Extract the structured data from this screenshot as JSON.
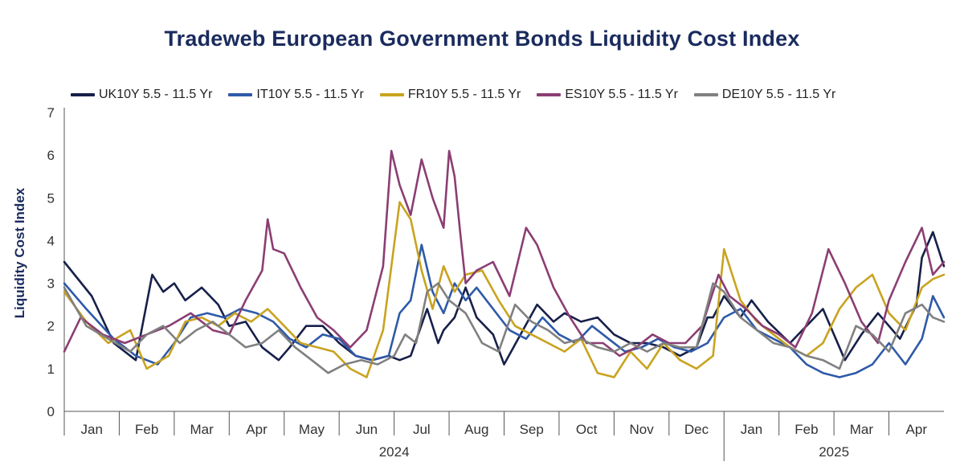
{
  "chart_data": {
    "type": "line",
    "title": "Tradeweb European Government Bonds Liquidity Cost Index",
    "ylabel": "Liquidity Cost Index",
    "xlabel": "",
    "ylim": [
      0,
      7
    ],
    "yticks": [
      0,
      1,
      2,
      3,
      4,
      5,
      6,
      7
    ],
    "x_unit": "month index (0 = start of Jan 2024)",
    "xlim": [
      0,
      16
    ],
    "month_labels": [
      "Jan",
      "Feb",
      "Mar",
      "Apr",
      "May",
      "Jun",
      "Jul",
      "Aug",
      "Sep",
      "Oct",
      "Nov",
      "Dec",
      "Jan",
      "Feb",
      "Mar",
      "Apr"
    ],
    "year_labels": [
      {
        "label": "2024",
        "center": 6.0
      },
      {
        "label": "2025",
        "center": 14.0
      }
    ],
    "grid": false,
    "legend_position": "top",
    "series": [
      {
        "name": "UK10Y 5.5 - 11.5 Yr",
        "color": "#17204a",
        "x": [
          0,
          0.5,
          0.9,
          1.3,
          1.6,
          1.8,
          2.0,
          2.2,
          2.5,
          2.8,
          3.0,
          3.3,
          3.6,
          3.9,
          4.1,
          4.4,
          4.7,
          5.0,
          5.3,
          5.6,
          5.9,
          6.1,
          6.3,
          6.6,
          6.8,
          6.9,
          7.1,
          7.3,
          7.5,
          7.8,
          8.0,
          8.3,
          8.6,
          8.9,
          9.1,
          9.4,
          9.7,
          10.0,
          10.3,
          10.6,
          10.9,
          11.2,
          11.5,
          11.7,
          11.8,
          12.0,
          12.3,
          12.5,
          12.8,
          13.2,
          13.5,
          13.8,
          14.2,
          14.5,
          14.8,
          15.0,
          15.2,
          15.5,
          15.6,
          15.8,
          16.0
        ],
        "values": [
          3.5,
          2.7,
          1.6,
          1.2,
          3.2,
          2.8,
          3.0,
          2.6,
          2.9,
          2.5,
          2.0,
          2.1,
          1.5,
          1.2,
          1.5,
          2.0,
          2.0,
          1.6,
          1.3,
          1.2,
          1.3,
          1.2,
          1.3,
          2.4,
          1.6,
          1.9,
          2.2,
          2.9,
          2.2,
          1.8,
          1.1,
          1.8,
          2.5,
          2.1,
          2.3,
          2.1,
          2.2,
          1.8,
          1.6,
          1.6,
          1.5,
          1.3,
          1.5,
          2.2,
          2.2,
          2.7,
          2.2,
          2.6,
          2.1,
          1.6,
          2.0,
          2.4,
          1.2,
          1.8,
          2.3,
          2.0,
          1.7,
          2.5,
          3.6,
          4.2,
          3.4
        ]
      },
      {
        "name": "IT10Y 5.5 - 11.5 Yr",
        "color": "#2e5aa8",
        "x": [
          0,
          0.4,
          0.9,
          1.3,
          1.7,
          2.0,
          2.3,
          2.6,
          2.9,
          3.2,
          3.5,
          3.8,
          4.1,
          4.4,
          4.7,
          5.0,
          5.3,
          5.6,
          5.9,
          6.1,
          6.3,
          6.5,
          6.7,
          6.9,
          7.1,
          7.3,
          7.5,
          7.8,
          8.1,
          8.4,
          8.7,
          9.0,
          9.3,
          9.6,
          9.9,
          10.2,
          10.5,
          10.8,
          11.1,
          11.4,
          11.7,
          12.0,
          12.3,
          12.6,
          12.9,
          13.2,
          13.5,
          13.8,
          14.1,
          14.4,
          14.7,
          15.0,
          15.3,
          15.6,
          15.8,
          16.0
        ],
        "values": [
          3.0,
          2.4,
          1.7,
          1.3,
          1.1,
          1.6,
          2.2,
          2.3,
          2.2,
          2.4,
          2.3,
          2.1,
          1.7,
          1.5,
          1.8,
          1.7,
          1.3,
          1.2,
          1.3,
          2.3,
          2.6,
          3.9,
          2.8,
          2.3,
          3.0,
          2.6,
          2.9,
          2.4,
          1.9,
          1.7,
          2.2,
          1.8,
          1.6,
          2.0,
          1.7,
          1.4,
          1.5,
          1.7,
          1.5,
          1.4,
          1.6,
          2.2,
          2.4,
          1.9,
          1.7,
          1.5,
          1.1,
          0.9,
          0.8,
          0.9,
          1.1,
          1.6,
          1.1,
          1.7,
          2.7,
          2.2
        ]
      },
      {
        "name": "FR10Y 5.5 - 11.5 Yr",
        "color": "#c9a320",
        "x": [
          0,
          0.4,
          0.8,
          1.2,
          1.5,
          1.9,
          2.2,
          2.5,
          2.8,
          3.1,
          3.4,
          3.7,
          4.0,
          4.3,
          4.6,
          4.9,
          5.2,
          5.5,
          5.8,
          5.95,
          6.1,
          6.3,
          6.5,
          6.7,
          6.9,
          7.1,
          7.3,
          7.6,
          7.9,
          8.2,
          8.5,
          8.8,
          9.1,
          9.4,
          9.7,
          10.0,
          10.3,
          10.6,
          10.9,
          11.2,
          11.5,
          11.8,
          12.0,
          12.3,
          12.6,
          12.9,
          13.2,
          13.5,
          13.8,
          14.1,
          14.4,
          14.7,
          15.0,
          15.3,
          15.6,
          15.8,
          16.0
        ],
        "values": [
          2.8,
          2.1,
          1.6,
          1.9,
          1.0,
          1.3,
          2.1,
          2.2,
          2.0,
          2.3,
          2.1,
          2.4,
          2.0,
          1.6,
          1.5,
          1.4,
          1.0,
          0.8,
          1.9,
          3.4,
          4.9,
          4.5,
          3.3,
          2.4,
          3.4,
          2.8,
          3.2,
          3.3,
          2.6,
          2.0,
          1.8,
          1.6,
          1.4,
          1.7,
          0.9,
          0.8,
          1.4,
          1.0,
          1.6,
          1.2,
          1.0,
          1.3,
          3.8,
          2.6,
          2.1,
          1.8,
          1.5,
          1.3,
          1.6,
          2.4,
          2.9,
          3.2,
          2.3,
          1.9,
          2.9,
          3.1,
          3.2
        ]
      },
      {
        "name": "ES10Y 5.5 - 11.5 Yr",
        "color": "#8b3e73",
        "x": [
          0,
          0.3,
          0.7,
          1.1,
          1.5,
          1.9,
          2.3,
          2.7,
          3.0,
          3.3,
          3.6,
          3.7,
          3.8,
          4.0,
          4.3,
          4.6,
          4.9,
          5.2,
          5.5,
          5.8,
          5.95,
          6.1,
          6.3,
          6.5,
          6.7,
          6.9,
          7.0,
          7.1,
          7.2,
          7.3,
          7.5,
          7.8,
          8.1,
          8.4,
          8.6,
          8.9,
          9.2,
          9.5,
          9.8,
          10.1,
          10.4,
          10.7,
          11.0,
          11.3,
          11.6,
          11.9,
          12.1,
          12.4,
          12.7,
          13.0,
          13.3,
          13.6,
          13.9,
          14.2,
          14.5,
          14.8,
          15.0,
          15.3,
          15.6,
          15.8,
          16.0
        ],
        "values": [
          1.4,
          2.2,
          1.8,
          1.6,
          1.8,
          2.0,
          2.3,
          1.9,
          1.8,
          2.6,
          3.3,
          4.5,
          3.8,
          3.7,
          2.9,
          2.2,
          1.9,
          1.5,
          1.9,
          3.4,
          6.1,
          5.3,
          4.6,
          5.9,
          5.0,
          4.3,
          6.1,
          5.5,
          4.2,
          3.0,
          3.3,
          3.5,
          2.7,
          4.3,
          3.9,
          2.9,
          2.2,
          1.6,
          1.6,
          1.3,
          1.5,
          1.8,
          1.6,
          1.6,
          2.0,
          3.2,
          2.7,
          2.4,
          2.0,
          1.8,
          1.5,
          2.3,
          3.8,
          3.0,
          2.1,
          1.6,
          2.6,
          3.5,
          4.3,
          3.2,
          3.5
        ]
      },
      {
        "name": "DE10Y 5.5 - 11.5 Yr",
        "color": "#808080",
        "x": [
          0,
          0.4,
          0.8,
          1.2,
          1.5,
          1.8,
          2.1,
          2.4,
          2.7,
          3.0,
          3.3,
          3.6,
          3.9,
          4.2,
          4.5,
          4.8,
          5.1,
          5.4,
          5.7,
          6.0,
          6.2,
          6.4,
          6.6,
          6.8,
          7.0,
          7.3,
          7.6,
          7.9,
          8.2,
          8.5,
          8.8,
          9.1,
          9.4,
          9.7,
          10.0,
          10.3,
          10.6,
          10.9,
          11.2,
          11.5,
          11.8,
          12.0,
          12.3,
          12.6,
          12.9,
          13.2,
          13.5,
          13.8,
          14.1,
          14.4,
          14.7,
          15.0,
          15.3,
          15.6,
          15.8,
          16.0
        ],
        "values": [
          2.9,
          2.0,
          1.7,
          1.4,
          1.8,
          2.0,
          1.6,
          1.9,
          2.1,
          1.8,
          1.5,
          1.6,
          1.9,
          1.5,
          1.2,
          0.9,
          1.1,
          1.2,
          1.1,
          1.3,
          1.8,
          1.6,
          2.8,
          3.0,
          2.6,
          2.3,
          1.6,
          1.4,
          2.5,
          2.1,
          1.9,
          1.6,
          1.7,
          1.5,
          1.4,
          1.6,
          1.4,
          1.6,
          1.5,
          1.5,
          3.0,
          2.8,
          2.2,
          1.9,
          1.6,
          1.5,
          1.3,
          1.2,
          1.0,
          2.0,
          1.8,
          1.4,
          2.3,
          2.5,
          2.2,
          2.1
        ]
      }
    ]
  }
}
